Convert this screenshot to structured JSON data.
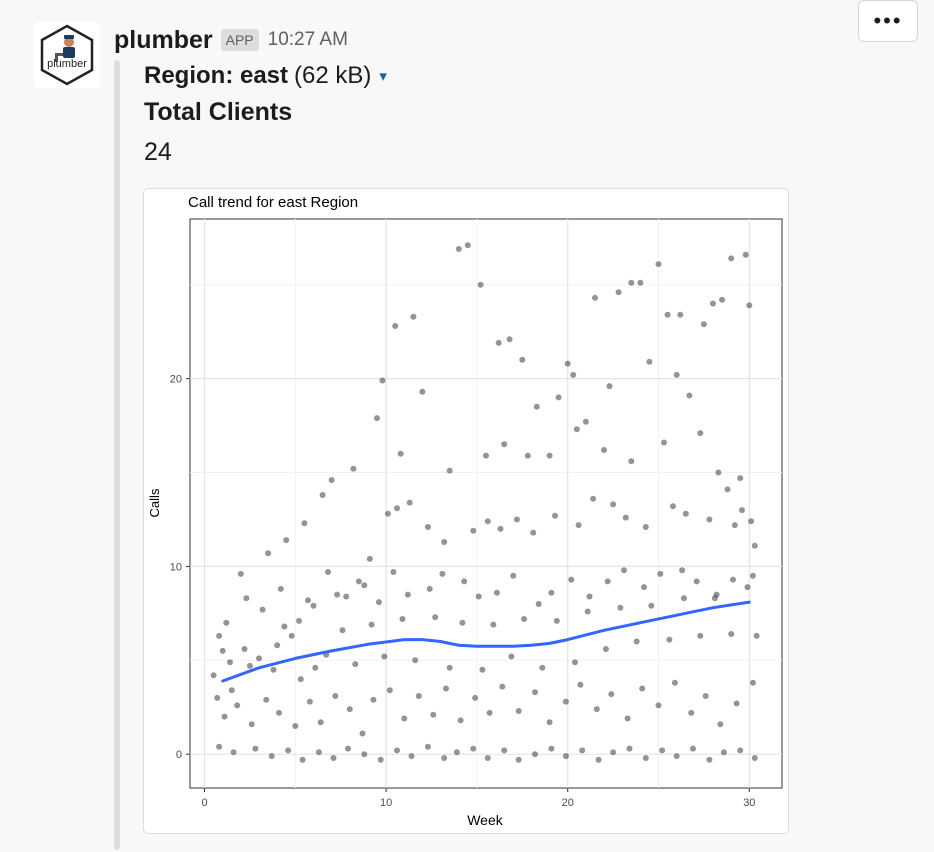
{
  "message": {
    "sender": "plumber",
    "badge": "APP",
    "timestamp": "10:27 AM",
    "avatar_text": "plumber",
    "more_label": "•••"
  },
  "attachment": {
    "file_name": "Region: east",
    "file_size": "(62 kB)",
    "caret": "▾",
    "field_title": "Total Clients",
    "field_value": "24"
  },
  "chart_data": {
    "type": "scatter",
    "title": "Call trend for east Region",
    "xlabel": "Week",
    "ylabel": "Calls",
    "xlim": [
      -0.8,
      31.8
    ],
    "ylim": [
      -1.8,
      28.5
    ],
    "x_ticks": [
      0,
      10,
      20,
      30
    ],
    "y_ticks": [
      0,
      10,
      20
    ],
    "grid": true,
    "point_color": "#000000",
    "trend_color": "#3366ff",
    "trend": {
      "x": [
        1,
        3,
        5,
        7,
        9,
        11,
        12,
        13,
        14,
        15,
        16,
        17,
        18,
        19,
        20,
        22,
        24,
        26,
        28,
        30
      ],
      "y": [
        3.9,
        4.6,
        5.1,
        5.5,
        5.85,
        6.1,
        6.1,
        6.0,
        5.8,
        5.75,
        5.75,
        5.75,
        5.8,
        5.9,
        6.1,
        6.6,
        7.0,
        7.4,
        7.8,
        8.1
      ]
    },
    "points": [
      [
        14,
        26.9
      ],
      [
        14.5,
        27.1
      ],
      [
        15.2,
        25.0
      ],
      [
        10.5,
        22.8
      ],
      [
        11.5,
        23.3
      ],
      [
        9.8,
        19.9
      ],
      [
        12.0,
        19.3
      ],
      [
        16.2,
        21.9
      ],
      [
        16.8,
        22.1
      ],
      [
        17.5,
        21.0
      ],
      [
        18.3,
        18.5
      ],
      [
        19.5,
        19.0
      ],
      [
        20.0,
        20.8
      ],
      [
        20.3,
        20.2
      ],
      [
        21.5,
        24.3
      ],
      [
        22.3,
        19.6
      ],
      [
        22.8,
        24.6
      ],
      [
        23.5,
        25.1
      ],
      [
        24.0,
        25.1
      ],
      [
        25.0,
        26.1
      ],
      [
        25.5,
        23.4
      ],
      [
        26.2,
        23.4
      ],
      [
        26.7,
        19.1
      ],
      [
        27.5,
        22.9
      ],
      [
        28.0,
        24.0
      ],
      [
        28.5,
        24.2
      ],
      [
        29.0,
        26.4
      ],
      [
        29.8,
        26.6
      ],
      [
        30.0,
        23.9
      ],
      [
        9.5,
        17.9
      ],
      [
        10.8,
        16.0
      ],
      [
        13.5,
        15.1
      ],
      [
        15.5,
        15.9
      ],
      [
        16.5,
        16.5
      ],
      [
        17.8,
        15.9
      ],
      [
        19.0,
        15.9
      ],
      [
        20.5,
        17.3
      ],
      [
        21.0,
        17.7
      ],
      [
        22.0,
        16.2
      ],
      [
        23.5,
        15.6
      ],
      [
        24.5,
        20.9
      ],
      [
        25.3,
        16.6
      ],
      [
        26.0,
        20.2
      ],
      [
        27.3,
        17.1
      ],
      [
        28.3,
        15.0
      ],
      [
        29.5,
        14.7
      ],
      [
        8.2,
        15.2
      ],
      [
        7.0,
        14.6
      ],
      [
        6.5,
        13.8
      ],
      [
        5.5,
        12.3
      ],
      [
        4.5,
        11.4
      ],
      [
        3.5,
        10.7
      ],
      [
        2.0,
        9.6
      ],
      [
        1.2,
        7.0
      ],
      [
        0.8,
        6.3
      ],
      [
        1.0,
        5.5
      ],
      [
        0.5,
        4.2
      ],
      [
        1.5,
        3.4
      ],
      [
        2.5,
        4.7
      ],
      [
        3.0,
        5.1
      ],
      [
        4.0,
        5.8
      ],
      [
        4.8,
        6.3
      ],
      [
        5.2,
        7.1
      ],
      [
        6.0,
        7.9
      ],
      [
        7.3,
        8.5
      ],
      [
        8.5,
        9.2
      ],
      [
        9.1,
        10.4
      ],
      [
        10.1,
        12.8
      ],
      [
        10.6,
        13.1
      ],
      [
        11.3,
        13.4
      ],
      [
        12.3,
        12.1
      ],
      [
        13.2,
        11.3
      ],
      [
        14.8,
        11.9
      ],
      [
        15.6,
        12.4
      ],
      [
        16.3,
        12.0
      ],
      [
        17.2,
        12.5
      ],
      [
        18.1,
        11.8
      ],
      [
        19.3,
        12.7
      ],
      [
        20.6,
        12.2
      ],
      [
        21.4,
        13.6
      ],
      [
        22.5,
        13.3
      ],
      [
        23.2,
        12.6
      ],
      [
        24.3,
        12.1
      ],
      [
        25.8,
        13.2
      ],
      [
        26.5,
        12.8
      ],
      [
        27.8,
        12.5
      ],
      [
        29.2,
        12.2
      ],
      [
        30.3,
        11.1
      ],
      [
        30.1,
        12.4
      ],
      [
        29.6,
        13.0
      ],
      [
        28.8,
        14.1
      ],
      [
        2.3,
        8.3
      ],
      [
        3.2,
        7.7
      ],
      [
        4.2,
        8.8
      ],
      [
        5.7,
        8.2
      ],
      [
        6.8,
        9.7
      ],
      [
        7.8,
        8.4
      ],
      [
        8.8,
        9.0
      ],
      [
        9.6,
        8.1
      ],
      [
        10.4,
        9.7
      ],
      [
        11.2,
        8.5
      ],
      [
        12.4,
        8.8
      ],
      [
        13.1,
        9.6
      ],
      [
        14.3,
        9.2
      ],
      [
        15.1,
        8.4
      ],
      [
        16.1,
        8.6
      ],
      [
        17.0,
        9.5
      ],
      [
        18.4,
        8.0
      ],
      [
        19.1,
        8.6
      ],
      [
        20.2,
        9.3
      ],
      [
        21.2,
        8.4
      ],
      [
        22.2,
        9.2
      ],
      [
        23.1,
        9.8
      ],
      [
        24.2,
        8.9
      ],
      [
        25.1,
        9.6
      ],
      [
        26.3,
        9.8
      ],
      [
        27.1,
        9.2
      ],
      [
        28.1,
        8.3
      ],
      [
        29.1,
        9.3
      ],
      [
        30.2,
        9.5
      ],
      [
        0.7,
        3.0
      ],
      [
        1.1,
        2.0
      ],
      [
        1.8,
        2.6
      ],
      [
        2.6,
        1.6
      ],
      [
        3.4,
        2.9
      ],
      [
        4.1,
        2.2
      ],
      [
        5.0,
        1.5
      ],
      [
        5.8,
        2.8
      ],
      [
        6.4,
        1.7
      ],
      [
        7.2,
        3.1
      ],
      [
        8.0,
        2.4
      ],
      [
        8.7,
        1.1
      ],
      [
        9.3,
        2.9
      ],
      [
        10.2,
        3.4
      ],
      [
        11.0,
        1.9
      ],
      [
        11.8,
        3.1
      ],
      [
        12.6,
        2.1
      ],
      [
        13.3,
        3.5
      ],
      [
        14.1,
        1.8
      ],
      [
        14.9,
        3.0
      ],
      [
        15.7,
        2.2
      ],
      [
        16.4,
        3.6
      ],
      [
        17.3,
        2.3
      ],
      [
        18.2,
        3.3
      ],
      [
        19.0,
        1.7
      ],
      [
        19.9,
        2.8
      ],
      [
        20.7,
        3.7
      ],
      [
        21.6,
        2.4
      ],
      [
        22.4,
        3.2
      ],
      [
        23.3,
        1.9
      ],
      [
        24.1,
        3.5
      ],
      [
        25.0,
        2.6
      ],
      [
        25.9,
        3.8
      ],
      [
        26.8,
        2.2
      ],
      [
        27.6,
        3.1
      ],
      [
        28.4,
        1.6
      ],
      [
        29.3,
        2.7
      ],
      [
        30.2,
        3.8
      ],
      [
        0.8,
        0.4
      ],
      [
        1.6,
        0.1
      ],
      [
        2.8,
        0.3
      ],
      [
        3.7,
        -0.1
      ],
      [
        4.6,
        0.2
      ],
      [
        5.4,
        -0.3
      ],
      [
        6.3,
        0.1
      ],
      [
        7.1,
        -0.2
      ],
      [
        7.9,
        0.3
      ],
      [
        8.8,
        0.0
      ],
      [
        9.7,
        -0.3
      ],
      [
        10.6,
        0.2
      ],
      [
        11.4,
        -0.1
      ],
      [
        12.3,
        0.4
      ],
      [
        13.2,
        -0.2
      ],
      [
        13.9,
        0.1
      ],
      [
        14.8,
        0.3
      ],
      [
        15.6,
        -0.2
      ],
      [
        16.5,
        0.2
      ],
      [
        17.3,
        -0.3
      ],
      [
        18.2,
        0.0
      ],
      [
        19.1,
        0.3
      ],
      [
        19.9,
        -0.1
      ],
      [
        20.8,
        0.2
      ],
      [
        21.7,
        -0.3
      ],
      [
        22.5,
        0.1
      ],
      [
        23.4,
        0.3
      ],
      [
        24.3,
        -0.2
      ],
      [
        25.2,
        0.2
      ],
      [
        26.0,
        -0.1
      ],
      [
        26.9,
        0.3
      ],
      [
        27.8,
        -0.3
      ],
      [
        28.6,
        0.1
      ],
      [
        29.5,
        0.2
      ],
      [
        30.3,
        -0.2
      ],
      [
        2.2,
        5.6
      ],
      [
        3.8,
        4.5
      ],
      [
        5.3,
        4.0
      ],
      [
        6.7,
        5.3
      ],
      [
        8.3,
        4.8
      ],
      [
        9.9,
        5.2
      ],
      [
        11.6,
        5.0
      ],
      [
        13.5,
        4.6
      ],
      [
        15.3,
        4.5
      ],
      [
        16.9,
        5.2
      ],
      [
        18.6,
        4.6
      ],
      [
        20.4,
        4.9
      ],
      [
        22.1,
        5.6
      ],
      [
        23.8,
        6.0
      ],
      [
        25.6,
        6.1
      ],
      [
        27.3,
        6.3
      ],
      [
        29.0,
        6.4
      ],
      [
        30.4,
        6.3
      ],
      [
        1.4,
        4.9
      ],
      [
        4.4,
        6.8
      ],
      [
        6.1,
        4.6
      ],
      [
        7.6,
        6.6
      ],
      [
        9.2,
        6.9
      ],
      [
        10.9,
        7.2
      ],
      [
        12.7,
        7.3
      ],
      [
        14.2,
        7.0
      ],
      [
        15.9,
        6.9
      ],
      [
        17.6,
        7.2
      ],
      [
        19.4,
        7.1
      ],
      [
        21.1,
        7.6
      ],
      [
        22.9,
        7.8
      ],
      [
        24.6,
        7.9
      ],
      [
        26.4,
        8.3
      ],
      [
        28.2,
        8.5
      ],
      [
        29.9,
        8.9
      ]
    ]
  }
}
